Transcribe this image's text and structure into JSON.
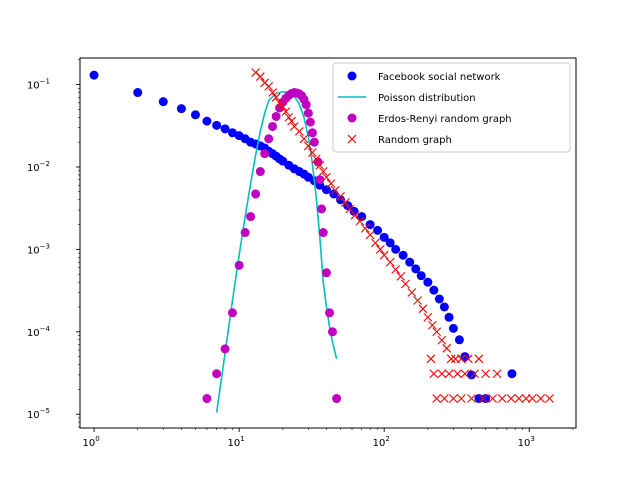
{
  "chart_data": {
    "type": "scatter",
    "xscale": "log",
    "yscale": "log",
    "xlim": [
      0.8,
      2100
    ],
    "ylim": [
      6.8e-06,
      0.21
    ],
    "grid": false,
    "legend_placement": "top-right",
    "x_ticks": [
      {
        "value": 1,
        "base": "10",
        "exp": "0"
      },
      {
        "value": 10,
        "base": "10",
        "exp": "1"
      },
      {
        "value": 100,
        "base": "10",
        "exp": "2"
      },
      {
        "value": 1000,
        "base": "10",
        "exp": "3"
      }
    ],
    "y_ticks": [
      {
        "value": 1e-05,
        "base": "10",
        "exp": "−5"
      },
      {
        "value": 0.0001,
        "base": "10",
        "exp": "−4"
      },
      {
        "value": 0.001,
        "base": "10",
        "exp": "−3"
      },
      {
        "value": 0.01,
        "base": "10",
        "exp": "−2"
      },
      {
        "value": 0.1,
        "base": "10",
        "exp": "−1"
      }
    ],
    "series": [
      {
        "name": "Facebook social network",
        "kind": "circle",
        "color": "#0000ff",
        "points": [
          [
            1,
            0.13
          ],
          [
            2,
            0.08
          ],
          [
            3,
            0.062
          ],
          [
            4,
            0.051
          ],
          [
            5,
            0.043
          ],
          [
            6,
            0.036
          ],
          [
            7,
            0.032
          ],
          [
            8,
            0.029
          ],
          [
            9,
            0.026
          ],
          [
            10,
            0.024
          ],
          [
            11,
            0.022
          ],
          [
            12,
            0.02
          ],
          [
            13,
            0.019
          ],
          [
            14,
            0.018
          ],
          [
            15,
            0.017
          ],
          [
            16,
            0.0155
          ],
          [
            17,
            0.0145
          ],
          [
            18,
            0.0135
          ],
          [
            19,
            0.0125
          ],
          [
            20,
            0.0118
          ],
          [
            22,
            0.0105
          ],
          [
            24,
            0.0095
          ],
          [
            26,
            0.0088
          ],
          [
            28,
            0.0082
          ],
          [
            30,
            0.0075
          ],
          [
            33,
            0.0068
          ],
          [
            36,
            0.006
          ],
          [
            40,
            0.0053
          ],
          [
            45,
            0.0047
          ],
          [
            50,
            0.004
          ],
          [
            56,
            0.0034
          ],
          [
            62,
            0.0029
          ],
          [
            70,
            0.0025
          ],
          [
            80,
            0.002
          ],
          [
            90,
            0.0017
          ],
          [
            100,
            0.0014
          ],
          [
            110,
            0.0012
          ],
          [
            120,
            0.001
          ],
          [
            135,
            0.00085
          ],
          [
            150,
            0.0007
          ],
          [
            165,
            0.00058
          ],
          [
            180,
            0.00048
          ],
          [
            200,
            0.0004
          ],
          [
            220,
            0.00032
          ],
          [
            240,
            0.00025
          ],
          [
            260,
            0.0002
          ],
          [
            280,
            0.00015
          ],
          [
            300,
            0.00011
          ],
          [
            330,
            8e-05
          ],
          [
            360,
            5e-05
          ],
          [
            400,
            3e-05
          ],
          [
            450,
            1.55e-05
          ],
          [
            500,
            1.55e-05
          ],
          [
            760,
            3.1e-05
          ]
        ]
      },
      {
        "name": "Poisson distribution",
        "kind": "line",
        "color": "#00bfbf",
        "points": [
          [
            7,
            1.05e-05
          ],
          [
            8,
            5.5e-05
          ],
          [
            9,
            0.00024
          ],
          [
            10,
            0.00085
          ],
          [
            11,
            0.0025
          ],
          [
            12,
            0.0063
          ],
          [
            13,
            0.014
          ],
          [
            14,
            0.027
          ],
          [
            15,
            0.045
          ],
          [
            16,
            0.064
          ],
          [
            18,
            0.078
          ],
          [
            20,
            0.082
          ],
          [
            22,
            0.08
          ],
          [
            24,
            0.072
          ],
          [
            26,
            0.058
          ],
          [
            28,
            0.04
          ],
          [
            30,
            0.023
          ],
          [
            32,
            0.011
          ],
          [
            34,
            0.0043
          ],
          [
            36,
            0.0014
          ],
          [
            38,
            0.0004
          ],
          [
            40,
            0.0002
          ],
          [
            42,
            0.000115
          ],
          [
            44,
            7.5e-05
          ],
          [
            47,
            4.7e-05
          ]
        ]
      },
      {
        "name": "Erdos-Renyi random graph",
        "kind": "circle",
        "color": "#bf00bf",
        "points": [
          [
            6,
            1.55e-05
          ],
          [
            7,
            3.1e-05
          ],
          [
            8,
            6.2e-05
          ],
          [
            9,
            0.00017
          ],
          [
            10,
            0.00064
          ],
          [
            11,
            0.0016
          ],
          [
            12,
            0.0025
          ],
          [
            13,
            0.0047
          ],
          [
            14,
            0.0088
          ],
          [
            15,
            0.0145
          ],
          [
            16,
            0.022
          ],
          [
            17,
            0.031
          ],
          [
            18,
            0.041
          ],
          [
            19,
            0.052
          ],
          [
            20,
            0.061
          ],
          [
            21,
            0.068
          ],
          [
            22,
            0.074
          ],
          [
            23,
            0.078
          ],
          [
            24,
            0.08
          ],
          [
            25,
            0.079
          ],
          [
            26,
            0.077
          ],
          [
            27,
            0.073
          ],
          [
            28,
            0.066
          ],
          [
            29,
            0.057
          ],
          [
            30,
            0.045
          ],
          [
            31,
            0.035
          ],
          [
            32,
            0.026
          ],
          [
            33,
            0.02
          ],
          [
            35,
            0.0115
          ],
          [
            36,
            0.007
          ],
          [
            37,
            0.0031
          ],
          [
            38,
            0.0016
          ],
          [
            40,
            0.00052
          ],
          [
            42,
            0.00017
          ],
          [
            44,
            0.0001
          ],
          [
            47,
            1.55e-05
          ]
        ]
      },
      {
        "name": "Random graph",
        "kind": "x",
        "color": "#ff0000",
        "points": [
          [
            13,
            0.14
          ],
          [
            14,
            0.125
          ],
          [
            15,
            0.105
          ],
          [
            16,
            0.095
          ],
          [
            17,
            0.08
          ],
          [
            18,
            0.07
          ],
          [
            19,
            0.06
          ],
          [
            20,
            0.054
          ],
          [
            21,
            0.047
          ],
          [
            22,
            0.04
          ],
          [
            23,
            0.036
          ],
          [
            24,
            0.031
          ],
          [
            26,
            0.027
          ],
          [
            28,
            0.022
          ],
          [
            30,
            0.018
          ],
          [
            32,
            0.015
          ],
          [
            34,
            0.0125
          ],
          [
            36,
            0.0105
          ],
          [
            38,
            0.0088
          ],
          [
            40,
            0.0075
          ],
          [
            43,
            0.0063
          ],
          [
            46,
            0.0052
          ],
          [
            50,
            0.0044
          ],
          [
            54,
            0.0037
          ],
          [
            58,
            0.0031
          ],
          [
            63,
            0.0026
          ],
          [
            68,
            0.0022
          ],
          [
            74,
            0.0018
          ],
          [
            80,
            0.0015
          ],
          [
            87,
            0.0012
          ],
          [
            94,
            0.001
          ],
          [
            100,
            0.00085
          ],
          [
            110,
            0.0007
          ],
          [
            120,
            0.00057
          ],
          [
            130,
            0.00047
          ],
          [
            140,
            0.00038
          ],
          [
            155,
            0.0003
          ],
          [
            170,
            0.00024
          ],
          [
            185,
            0.00019
          ],
          [
            200,
            0.00015
          ],
          [
            215,
            0.00012
          ],
          [
            230,
            0.0001
          ],
          [
            250,
            7.9e-05
          ],
          [
            270,
            6.3e-05
          ],
          [
            290,
            4.7e-05
          ],
          [
            310,
            4.7e-05
          ],
          [
            340,
            4.7e-05
          ],
          [
            380,
            4.7e-05
          ],
          [
            450,
            4.7e-05
          ],
          [
            210,
            4.7e-05
          ],
          [
            220,
            3.1e-05
          ],
          [
            250,
            3.1e-05
          ],
          [
            280,
            3.1e-05
          ],
          [
            320,
            3.1e-05
          ],
          [
            360,
            3.1e-05
          ],
          [
            420,
            3.1e-05
          ],
          [
            500,
            3.1e-05
          ],
          [
            600,
            3.1e-05
          ],
          [
            230,
            1.55e-05
          ],
          [
            260,
            1.55e-05
          ],
          [
            300,
            1.55e-05
          ],
          [
            340,
            1.55e-05
          ],
          [
            400,
            1.55e-05
          ],
          [
            480,
            1.55e-05
          ],
          [
            560,
            1.55e-05
          ],
          [
            650,
            1.55e-05
          ],
          [
            750,
            1.55e-05
          ],
          [
            850,
            1.55e-05
          ],
          [
            950,
            1.55e-05
          ],
          [
            1050,
            1.55e-05
          ],
          [
            1200,
            1.55e-05
          ],
          [
            1380,
            1.55e-05
          ]
        ]
      }
    ]
  }
}
